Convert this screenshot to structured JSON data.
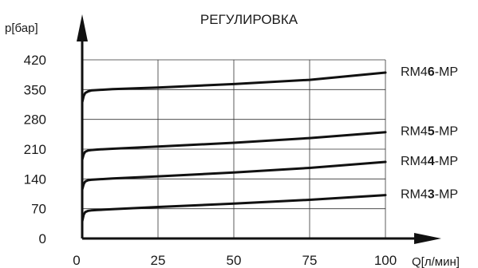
{
  "chart_data": {
    "type": "line",
    "title": "РЕГУЛИРОВКА",
    "xlabel": "Q[л/мин]",
    "ylabel": "p[бар]",
    "xlim": [
      0,
      100
    ],
    "ylim": [
      0,
      420
    ],
    "x_ticks": [
      "0",
      "25",
      "50",
      "75",
      "100"
    ],
    "y_ticks": [
      "0",
      "70",
      "140",
      "210",
      "280",
      "350",
      "420"
    ],
    "grid": true,
    "series": [
      {
        "name": "RM46-MP",
        "name_parts": {
          "prefix": "RM4",
          "bold": "6",
          "suffix": "-MP"
        },
        "x": [
          0,
          0.5,
          1,
          2,
          3,
          5,
          10,
          25,
          50,
          75,
          100
        ],
        "y": [
          320,
          335,
          342,
          346,
          348,
          349,
          351,
          355,
          363,
          373,
          390
        ]
      },
      {
        "name": "RM45-MP",
        "name_parts": {
          "prefix": "RM4",
          "bold": "5",
          "suffix": "-MP"
        },
        "x": [
          0,
          0.5,
          1,
          2,
          3,
          5,
          10,
          25,
          50,
          75,
          100
        ],
        "y": [
          185,
          198,
          204,
          207,
          208,
          209,
          211,
          216,
          225,
          236,
          250
        ]
      },
      {
        "name": "RM44-MP",
        "name_parts": {
          "prefix": "RM4",
          "bold": "4",
          "suffix": "-MP"
        },
        "x": [
          0,
          0.5,
          1,
          2,
          3,
          5,
          10,
          25,
          50,
          75,
          100
        ],
        "y": [
          115,
          128,
          134,
          137,
          138,
          139,
          141,
          146,
          155,
          166,
          180
        ]
      },
      {
        "name": "RM43-MP",
        "name_parts": {
          "prefix": "RM4",
          "bold": "3",
          "suffix": "-MP"
        },
        "x": [
          0,
          0.5,
          1,
          2,
          3,
          5,
          10,
          25,
          50,
          75,
          100
        ],
        "y": [
          40,
          56,
          62,
          65,
          66,
          67,
          69,
          74,
          82,
          91,
          102
        ]
      }
    ]
  }
}
